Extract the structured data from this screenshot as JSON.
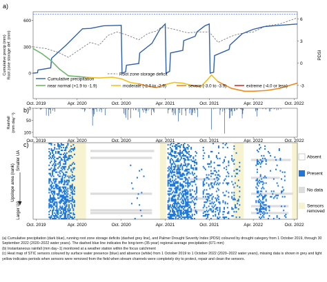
{
  "chart_data": [
    {
      "panel": "a)",
      "type": "line",
      "ylabel": "Cumulative precip (mm)\nRoot zone storage def. (mm)",
      "y2label": "PDSI",
      "yticks": [
        0,
        300,
        600
      ],
      "ylim": [
        -290,
        700
      ],
      "y2ticks": [
        6,
        3,
        0,
        -3
      ],
      "y2lim": [
        -4.8,
        7.0
      ],
      "xticks": [
        "Oct. 2019",
        "Apr. 2020",
        "Oct. 2020",
        "Apr. 2021",
        "Oct. 2021",
        "Apr. 2022",
        "Oct. 2022"
      ],
      "long_term_average": 671,
      "series": [
        {
          "name": "Cumulative precipitation",
          "color": "#2c5fae",
          "x": [
            0,
            0.1,
            0.11,
            0.4,
            0.42,
            0.75,
            1.12,
            1.3,
            1.45,
            1.6,
            2.0,
            2.02,
            2.1,
            2.12,
            2.4,
            2.42,
            2.7,
            2.88,
            3.0,
            3.02,
            3.1,
            3.12,
            3.4,
            3.42,
            3.68,
            3.72,
            3.9,
            4.0,
            4.02,
            4.1,
            4.12,
            4.45,
            4.47,
            4.75,
            5.0,
            5.25,
            5.6,
            6.0
          ],
          "y": [
            0,
            5,
            35,
            60,
            170,
            320,
            505,
            510,
            525,
            540,
            545,
            0,
            15,
            90,
            110,
            230,
            340,
            500,
            560,
            0,
            20,
            230,
            260,
            370,
            420,
            470,
            540,
            560,
            0,
            10,
            200,
            270,
            320,
            450,
            500,
            530,
            545,
            560
          ]
        },
        {
          "name": "Root zone storage deficit",
          "color": "#7a7a7a",
          "dashed": true,
          "x": [
            0,
            0.3,
            0.6,
            0.8,
            1.0,
            1.3,
            1.5,
            1.7,
            1.9,
            2.1,
            2.4,
            2.6,
            2.8,
            2.9,
            3.0,
            3.2,
            3.5,
            3.8,
            4.0,
            4.2,
            4.5,
            4.7,
            5.0,
            5.3,
            5.6,
            6.0
          ],
          "y": [
            300,
            280,
            230,
            180,
            250,
            350,
            320,
            430,
            470,
            440,
            380,
            450,
            480,
            520,
            520,
            500,
            460,
            470,
            470,
            350,
            420,
            450,
            470,
            540,
            560,
            630
          ]
        }
      ],
      "pdsi": {
        "x": [
          0,
          0.2,
          0.4,
          0.6,
          0.8,
          1.0,
          1.2,
          1.5,
          1.8,
          2.0,
          2.2,
          2.4,
          2.6,
          2.8,
          3.0,
          3.2,
          3.4,
          3.6,
          3.8,
          3.95,
          4.05,
          4.2,
          4.5,
          4.8,
          5.0,
          5.3,
          5.6,
          6.0
        ],
        "y": [
          2.0,
          1.3,
          0.4,
          -0.8,
          -1.7,
          -1.8,
          -1.9,
          -2.0,
          -1.9,
          -2.1,
          -2.6,
          -2.8,
          -3.1,
          -3.3,
          -2.9,
          -2.6,
          -2.7,
          -3.0,
          -3.2,
          -2.3,
          -1.6,
          -2.5,
          -3.4,
          -3.8,
          -3.8,
          -3.7,
          -3.4,
          -2.7
        ]
      },
      "pdsi_categories": [
        {
          "label": "near normal (+1.9 to -1.9)",
          "color": "#6db56b",
          "min": -1.9,
          "max": 99
        },
        {
          "label": "moderate (-2.0 to -2.9)",
          "color": "#f3c11d",
          "min": -2.9,
          "max": -1.9
        },
        {
          "label": "severe (-3.0 to -3.9)",
          "color": "#f08a1c",
          "min": -3.9,
          "max": -2.9
        },
        {
          "label": "extreme (-4.0 or less)",
          "color": "#d3362a",
          "min": -99,
          "max": -3.9
        }
      ]
    },
    {
      "panel": "b)",
      "type": "bar",
      "ylabel": "Rainfall\n(mm day⁻¹)",
      "yticks": [
        0,
        50,
        100
      ],
      "ylim": [
        0,
        120
      ],
      "xticks": [
        "Oct. 2019",
        "Apr. 2020",
        "Oct. 2020",
        "Apr. 2021",
        "Oct. 2021",
        "Apr. 2022",
        "Oct. 2022"
      ]
    },
    {
      "panel": "c)",
      "type": "heatmap",
      "ylabel": "Upslope area (rank)",
      "y_top_label": "Smaller UA",
      "y_bottom_label": "Larger UA",
      "xticks": [
        "Oct. 2019",
        "Apr. 2020",
        "Oct. 2020",
        "Apr. 2021",
        "Oct. 2021",
        "Apr. 2022",
        "Oct. 2022"
      ],
      "legend": [
        {
          "label": "Absent",
          "color": "#ffffff"
        },
        {
          "label": "Present",
          "color": "#1f78d9"
        },
        {
          "label": "No data",
          "color": "#dcdcdc"
        },
        {
          "label": "Sensors\nremoved",
          "color": "#f7f2cf"
        }
      ]
    }
  ],
  "caption": [
    "(a) Cumulative precipitation (dark blue), running root zone storage deficits (dashed grey line), and Palmer Drought Severity Index (PDSI) coloured by drought category from 1 October 2019, through 30 September 2022 (2020–2022 water years). The dashed blue line indicates the long-term (35-year) regional average precipitation (671 mm)",
    "(b) Instantaneous rainfall (mm day−1) monitored at a weather station within the focus catchment",
    "(c) Heat map of STIC sensors coloured by surface water presence (blue) and absence (white) from 1 October 2019 to 1 October 2022 (2020–2022 water years), missing data is shown in grey and light yellow indicates periods when sensors were removed from the field when stream channels were completely dry to protect, repair and clean the sensors."
  ]
}
